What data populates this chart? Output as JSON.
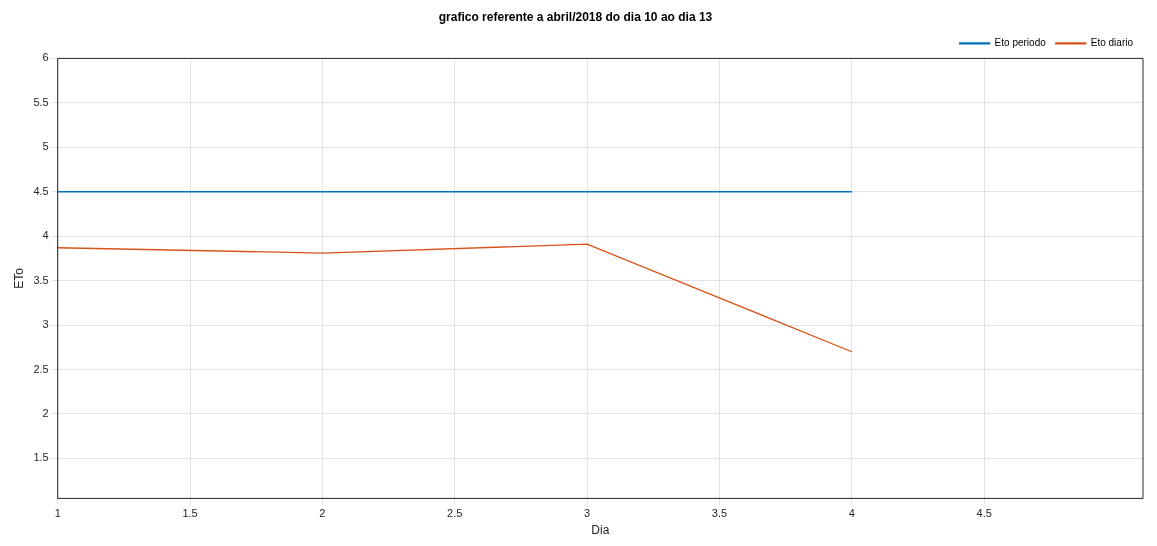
{
  "chart_data": {
    "type": "line",
    "title": "grafico referente a abril/2018 do dia 10 ao dia 13",
    "xlabel": "Dia",
    "ylabel": "ETo",
    "x": [
      1,
      2,
      3,
      4
    ],
    "series": [
      {
        "name": "Eto periodo",
        "color": "#0072bd",
        "values": [
          4.5,
          4.5,
          4.5,
          4.5
        ]
      },
      {
        "name": "Eto diario",
        "color": "#d95319",
        "values": [
          3.87,
          3.81,
          3.91,
          2.7
        ]
      }
    ],
    "xlim": [
      1,
      5.1
    ],
    "xticks": [
      1,
      1.5,
      2,
      2.5,
      3,
      3.5,
      4,
      4.5
    ],
    "ylim": [
      1.05,
      6
    ],
    "yticks": [
      1.5,
      2,
      2.5,
      3,
      3.5,
      4,
      4.5,
      5,
      5.5,
      6
    ],
    "grid": true,
    "legend": "top right",
    "marker": "none",
    "line_style": "solid"
  }
}
